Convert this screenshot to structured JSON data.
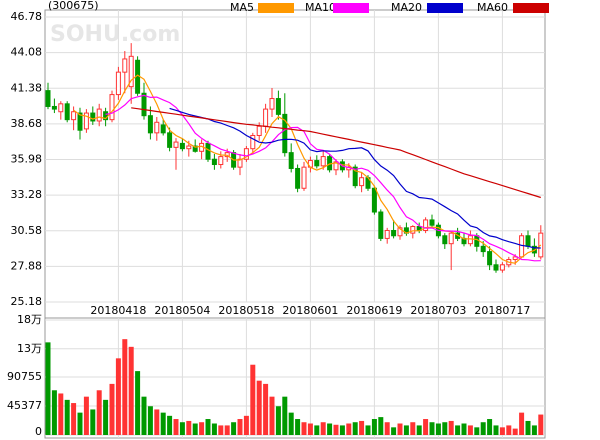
{
  "chart_data": {
    "type": "candlestick",
    "title": "(300675)",
    "watermark": "SOHU.com",
    "categories": [
      null,
      null,
      null,
      null,
      null,
      null,
      null,
      null,
      null,
      null,
      null,
      "20180418",
      null,
      null,
      null,
      null,
      null,
      null,
      null,
      null,
      null,
      "20180504",
      null,
      null,
      null,
      null,
      null,
      null,
      null,
      null,
      null,
      "20180518",
      null,
      null,
      null,
      null,
      null,
      null,
      null,
      null,
      null,
      "20180601",
      null,
      null,
      null,
      null,
      null,
      null,
      null,
      null,
      null,
      "20180619",
      null,
      null,
      null,
      null,
      null,
      null,
      null,
      null,
      null,
      "20180703",
      null,
      null,
      null,
      null,
      null,
      null,
      null,
      null,
      null,
      "20180717",
      null,
      null,
      null,
      null,
      null,
      null
    ],
    "ohlc": [
      [
        41.2,
        41.8,
        39.8,
        40.0
      ],
      [
        40.0,
        40.6,
        39.5,
        39.8
      ],
      [
        39.6,
        40.4,
        39.0,
        40.2
      ],
      [
        40.2,
        40.4,
        38.8,
        39.0
      ],
      [
        39.0,
        40.0,
        38.2,
        39.6
      ],
      [
        39.5,
        39.9,
        37.5,
        38.2
      ],
      [
        38.3,
        39.8,
        38.0,
        39.5
      ],
      [
        39.5,
        40.0,
        38.6,
        38.9
      ],
      [
        38.9,
        40.2,
        38.5,
        39.8
      ],
      [
        39.6,
        39.9,
        38.5,
        39.0
      ],
      [
        39.0,
        41.2,
        38.8,
        40.9
      ],
      [
        40.9,
        43.0,
        40.5,
        42.6
      ],
      [
        42.6,
        44.2,
        41.0,
        43.6
      ],
      [
        41.5,
        44.8,
        40.2,
        43.8
      ],
      [
        43.5,
        43.8,
        40.8,
        41.0
      ],
      [
        41.0,
        41.8,
        39.0,
        39.3
      ],
      [
        39.3,
        40.0,
        37.5,
        38.0
      ],
      [
        38.0,
        39.2,
        37.4,
        38.8
      ],
      [
        38.6,
        39.0,
        37.8,
        38.0
      ],
      [
        38.0,
        38.4,
        36.6,
        36.9
      ],
      [
        36.9,
        37.6,
        35.2,
        37.3
      ],
      [
        37.2,
        37.6,
        36.6,
        36.8
      ],
      [
        36.8,
        37.4,
        36.2,
        37.0
      ],
      [
        37.0,
        37.5,
        36.5,
        36.6
      ],
      [
        36.6,
        37.5,
        36.0,
        37.2
      ],
      [
        37.2,
        37.4,
        35.8,
        36.0
      ],
      [
        36.0,
        36.4,
        35.2,
        35.6
      ],
      [
        35.6,
        36.6,
        35.3,
        36.2
      ],
      [
        36.2,
        36.8,
        35.8,
        36.5
      ],
      [
        36.5,
        36.7,
        35.2,
        35.4
      ],
      [
        35.4,
        36.4,
        34.8,
        36.0
      ],
      [
        36.0,
        37.0,
        35.8,
        36.8
      ],
      [
        36.8,
        38.0,
        36.4,
        37.8
      ],
      [
        37.8,
        38.8,
        37.4,
        38.5
      ],
      [
        38.5,
        40.2,
        38.0,
        39.8
      ],
      [
        39.8,
        41.4,
        39.2,
        40.6
      ],
      [
        40.6,
        41.2,
        39.0,
        39.4
      ],
      [
        39.4,
        41.0,
        36.2,
        36.5
      ],
      [
        36.5,
        37.2,
        35.0,
        35.3
      ],
      [
        35.3,
        35.6,
        33.5,
        33.8
      ],
      [
        33.8,
        35.8,
        33.6,
        35.4
      ],
      [
        35.4,
        36.2,
        35.0,
        35.9
      ],
      [
        35.9,
        36.3,
        35.3,
        35.5
      ],
      [
        35.5,
        36.6,
        35.2,
        36.2
      ],
      [
        36.2,
        36.4,
        35.0,
        35.2
      ],
      [
        35.2,
        36.0,
        34.8,
        35.8
      ],
      [
        35.8,
        36.0,
        35.0,
        35.2
      ],
      [
        35.2,
        35.7,
        34.6,
        35.4
      ],
      [
        35.4,
        35.6,
        33.8,
        34.0
      ],
      [
        34.0,
        35.0,
        33.5,
        34.6
      ],
      [
        34.6,
        34.8,
        33.6,
        33.8
      ],
      [
        33.8,
        34.0,
        31.8,
        32.0
      ],
      [
        32.0,
        32.2,
        29.8,
        30.0
      ],
      [
        30.0,
        30.8,
        29.6,
        30.6
      ],
      [
        30.6,
        31.4,
        30.0,
        30.2
      ],
      [
        30.2,
        31.0,
        29.9,
        30.8
      ],
      [
        30.8,
        31.2,
        30.2,
        30.4
      ],
      [
        30.4,
        31.0,
        30.0,
        30.9
      ],
      [
        30.9,
        31.2,
        30.4,
        30.6
      ],
      [
        30.6,
        31.6,
        30.4,
        31.4
      ],
      [
        31.4,
        31.8,
        30.8,
        31.0
      ],
      [
        31.0,
        31.2,
        30.0,
        30.2
      ],
      [
        30.2,
        30.4,
        29.2,
        29.6
      ],
      [
        29.6,
        30.6,
        27.6,
        30.4
      ],
      [
        30.4,
        30.8,
        29.8,
        30.0
      ],
      [
        30.0,
        30.4,
        29.4,
        29.6
      ],
      [
        29.6,
        30.6,
        29.4,
        30.2
      ],
      [
        30.2,
        30.4,
        29.0,
        29.4
      ],
      [
        29.4,
        29.8,
        28.6,
        29.0
      ],
      [
        29.0,
        29.4,
        27.6,
        28.0
      ],
      [
        28.0,
        28.4,
        27.4,
        27.6
      ],
      [
        27.6,
        28.2,
        27.4,
        28.0
      ],
      [
        28.0,
        28.6,
        27.8,
        28.4
      ],
      [
        28.4,
        28.8,
        28.0,
        28.6
      ],
      [
        28.6,
        30.4,
        28.5,
        30.2
      ],
      [
        30.2,
        30.6,
        29.2,
        29.4
      ],
      [
        29.4,
        30.0,
        28.6,
        28.9
      ],
      [
        28.6,
        31.0,
        28.4,
        30.4
      ]
    ],
    "up_color": "#ff3333",
    "down_color": "#009900",
    "ylim": [
      25.18,
      46.78
    ],
    "yticks": [
      46.78,
      44.08,
      41.38,
      38.68,
      35.98,
      33.28,
      30.58,
      27.88,
      25.18
    ],
    "grid": true,
    "series": [
      {
        "name": "MA5",
        "color": "#ff9900",
        "values": [
          null,
          null,
          null,
          null,
          39.72,
          39.36,
          39.26,
          39.04,
          39.2,
          39.08,
          39.62,
          40.24,
          41.18,
          41.98,
          42.38,
          42.06,
          41.14,
          40.18,
          39.02,
          38.2,
          37.8,
          37.56,
          37.2,
          36.92,
          36.98,
          36.72,
          36.48,
          36.32,
          36.3,
          35.94,
          35.94,
          36.18,
          36.5,
          36.9,
          37.78,
          38.7,
          39.22,
          38.96,
          38.32,
          37.12,
          36.08,
          35.38,
          35.18,
          35.36,
          35.64,
          35.72,
          35.58,
          35.56,
          35.12,
          35.0,
          34.6,
          33.96,
          32.88,
          32.2,
          31.32,
          30.72,
          30.4,
          30.58,
          30.58,
          30.82,
          30.86,
          30.82,
          30.56,
          30.52,
          30.24,
          29.96,
          29.96,
          29.92,
          29.64,
          29.24,
          28.84,
          28.4,
          28.2,
          28.12,
          28.56,
          28.92,
          29.1,
          29.5
        ]
      },
      {
        "name": "MA10",
        "color": "#ff00ff",
        "values": [
          null,
          null,
          null,
          null,
          null,
          null,
          null,
          null,
          null,
          39.4,
          39.49,
          39.75,
          40.11,
          40.59,
          40.73,
          40.84,
          40.69,
          40.71,
          40.5,
          40.29,
          39.93,
          39.35,
          38.69,
          37.97,
          37.59,
          37.26,
          37.02,
          36.76,
          36.61,
          36.46,
          36.33,
          36.25,
          36.4,
          36.6,
          36.86,
          37.32,
          37.86,
          38.23,
          38.4,
          38.41,
          38.1,
          37.17,
          36.75,
          36.68,
          36.38,
          35.9,
          35.48,
          35.37,
          35.24,
          35.32,
          35.16,
          34.77,
          34.22,
          33.66,
          33.16,
          32.34,
          31.64,
          31.39,
          30.95,
          30.77,
          30.79,
          30.61,
          30.57,
          30.55,
          30.53,
          30.41,
          30.26,
          30.22,
          29.94,
          29.6,
          29.4,
          29.18,
          28.92,
          28.68,
          28.4,
          28.38,
          28.3,
          28.31
        ]
      },
      {
        "name": "MA20",
        "color": "#0000cc",
        "values": [
          null,
          null,
          null,
          null,
          null,
          null,
          null,
          null,
          null,
          null,
          null,
          null,
          null,
          null,
          null,
          null,
          null,
          null,
          null,
          39.85,
          39.71,
          39.55,
          39.4,
          39.28,
          39.16,
          39.05,
          38.86,
          38.74,
          38.56,
          38.38,
          38.13,
          37.8,
          37.55,
          37.29,
          37.23,
          37.29,
          37.44,
          37.5,
          37.51,
          37.44,
          37.22,
          36.71,
          36.58,
          36.64,
          36.62,
          36.61,
          36.67,
          36.8,
          36.82,
          36.87,
          36.63,
          35.97,
          35.49,
          35.17,
          34.77,
          34.12,
          33.56,
          33.38,
          33.1,
          33.05,
          32.98,
          32.69,
          32.4,
          32.11,
          31.85,
          31.38,
          30.95,
          30.81,
          30.45,
          30.19,
          30.1,
          29.9,
          29.75,
          29.62,
          29.47,
          29.4,
          29.28,
          29.27
        ]
      },
      {
        "name": "MA60",
        "color": "#cc0000",
        "values": [
          null,
          null,
          null,
          null,
          null,
          null,
          null,
          null,
          null,
          null,
          null,
          null,
          null,
          39.9,
          39.83,
          39.76,
          39.69,
          39.62,
          39.55,
          39.48,
          39.41,
          39.34,
          39.27,
          39.2,
          39.13,
          39.06,
          38.99,
          38.92,
          38.85,
          38.78,
          38.71,
          38.65,
          38.6,
          38.54,
          38.49,
          38.43,
          38.38,
          38.32,
          38.27,
          38.21,
          38.16,
          38.1,
          38.0,
          37.9,
          37.8,
          37.7,
          37.6,
          37.5,
          37.4,
          37.3,
          37.2,
          37.1,
          37.0,
          36.9,
          36.8,
          36.7,
          36.52,
          36.34,
          36.16,
          35.98,
          35.8,
          35.62,
          35.44,
          35.26,
          35.08,
          34.9,
          34.75,
          34.6,
          34.45,
          34.3,
          34.15,
          34.0,
          33.85,
          33.7,
          33.55,
          33.4,
          33.25,
          33.1
        ]
      }
    ],
    "volume": {
      "ylim": [
        0,
        180000
      ],
      "yticks": [
        {
          "value": 180000,
          "label": "18万"
        },
        {
          "value": 135000,
          "label": "13万"
        },
        90755,
        45377,
        0
      ],
      "values": [
        145000,
        70000,
        65000,
        55000,
        50000,
        35000,
        60000,
        40000,
        70000,
        55000,
        80000,
        120000,
        150000,
        138000,
        100000,
        60000,
        45000,
        40000,
        35000,
        30000,
        25000,
        20000,
        22000,
        18000,
        20000,
        25000,
        18000,
        15000,
        15000,
        20000,
        25000,
        30000,
        110000,
        85000,
        80000,
        60000,
        45000,
        60000,
        35000,
        25000,
        20000,
        18000,
        15000,
        20000,
        18000,
        16000,
        15000,
        18000,
        20000,
        22000,
        15000,
        25000,
        28000,
        20000,
        12000,
        18000,
        15000,
        20000,
        15000,
        25000,
        20000,
        18000,
        20000,
        22000,
        15000,
        18000,
        15000,
        12000,
        20000,
        25000,
        15000,
        12000,
        15000,
        10000,
        35000,
        22000,
        15000,
        32000
      ]
    }
  }
}
